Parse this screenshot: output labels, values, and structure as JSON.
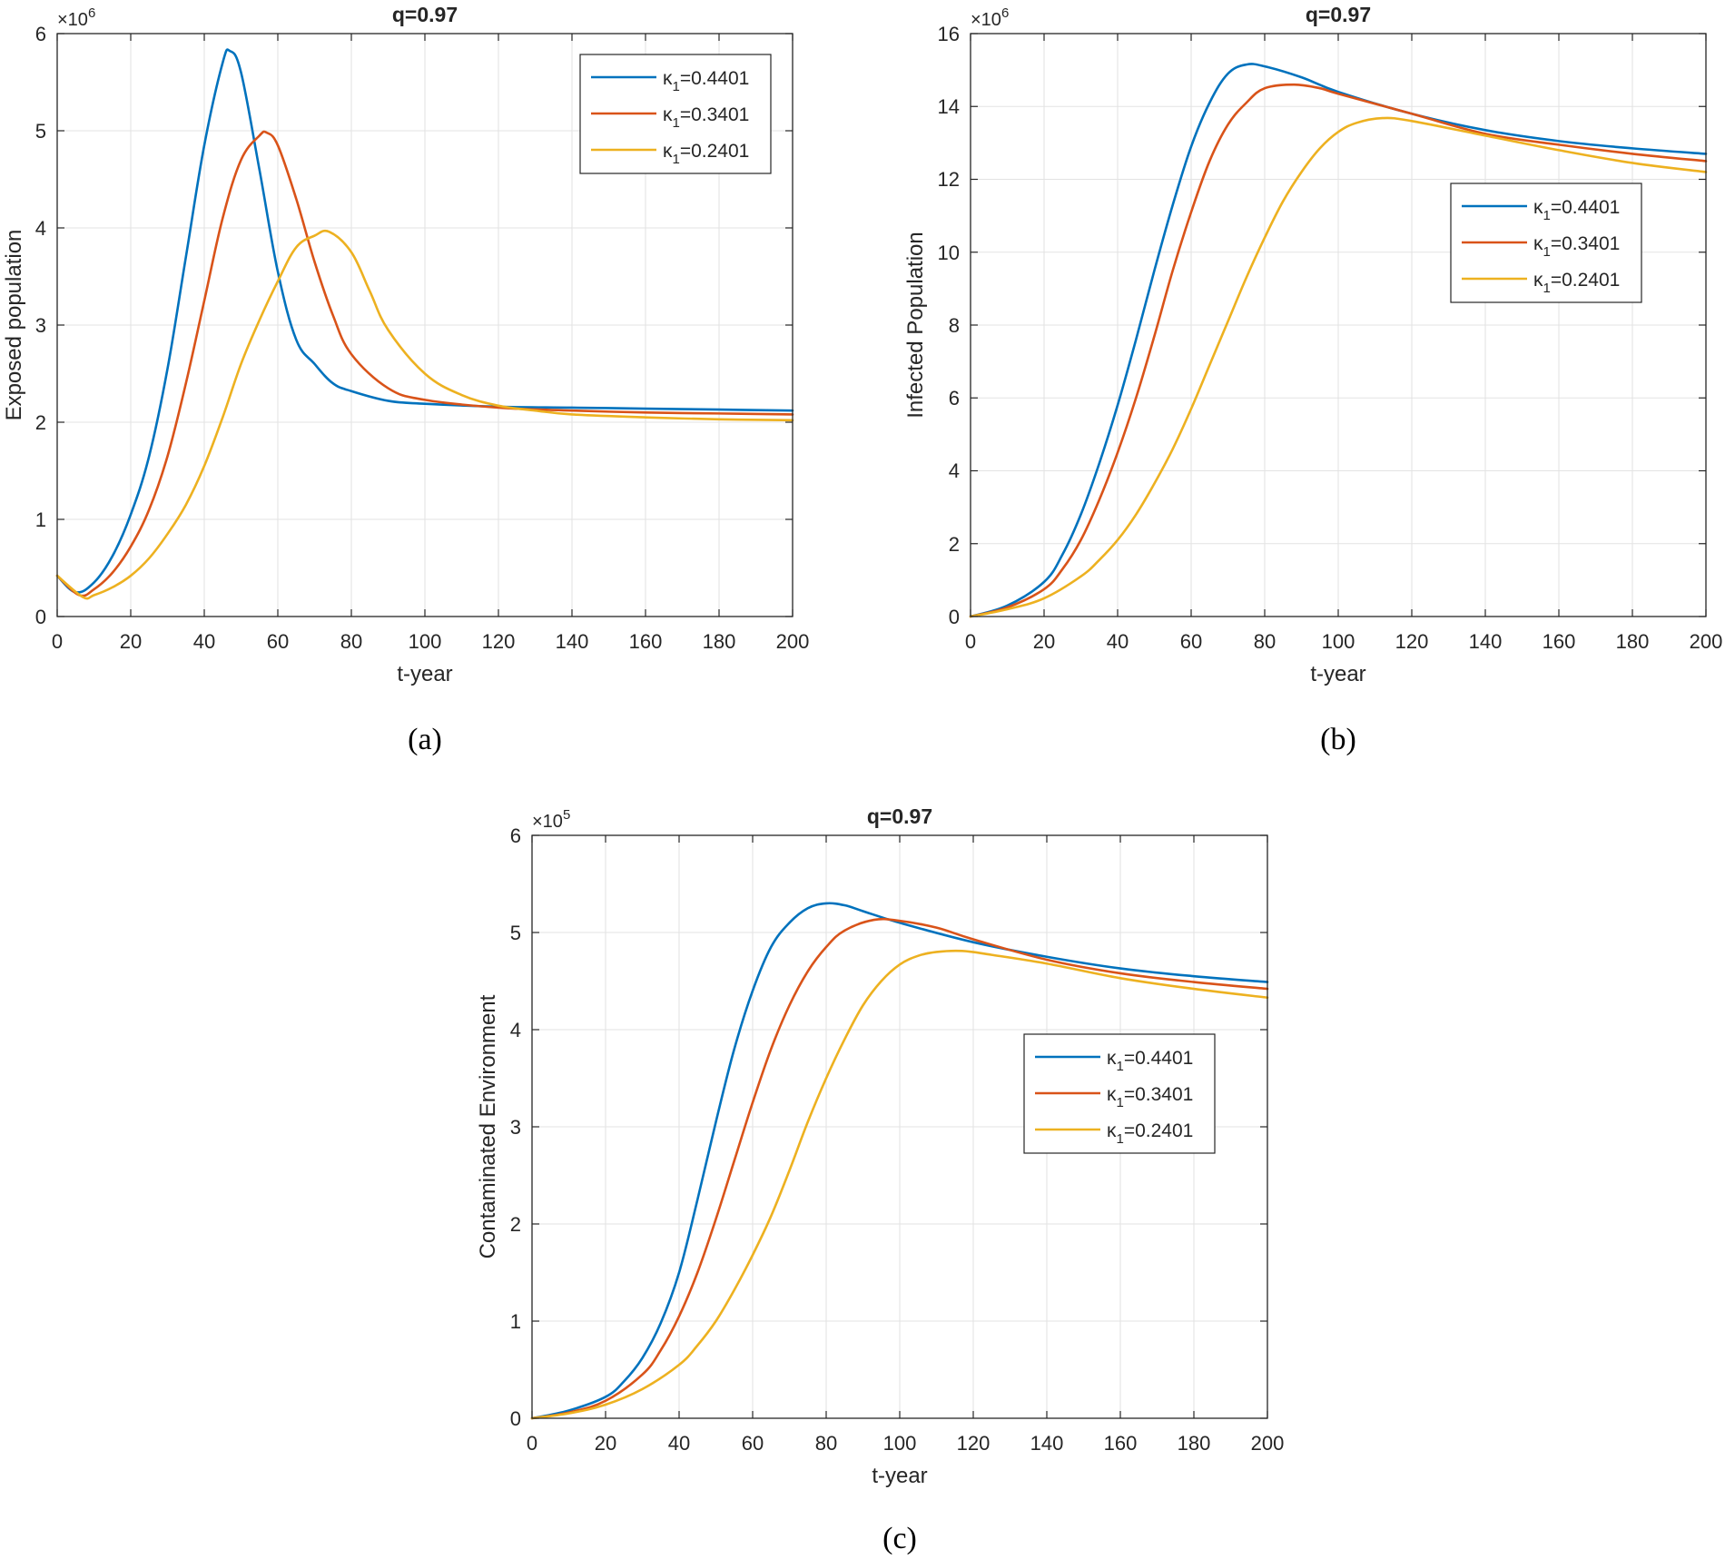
{
  "chart_data": [
    {
      "type": "line",
      "panel_label": "(a)",
      "title": "q=0.97",
      "xlabel": "t-year",
      "ylabel": "Exposed population",
      "y_multiplier": "×10",
      "y_exponent": "6",
      "xlim": [
        0,
        200
      ],
      "ylim": [
        0,
        6
      ],
      "xticks": [
        "0",
        "20",
        "40",
        "60",
        "80",
        "100",
        "120",
        "140",
        "160",
        "180",
        "200"
      ],
      "yticks": [
        "0",
        "1",
        "2",
        "3",
        "4",
        "5",
        "6"
      ],
      "grid": true,
      "legend_position": "top-right",
      "series": [
        {
          "name": "κ",
          "subscript": "1",
          "value_label": "=0.4401",
          "color": "#0072BD",
          "x": [
            0,
            5,
            10,
            15,
            20,
            25,
            30,
            35,
            40,
            45,
            47,
            50,
            55,
            60,
            65,
            70,
            75,
            80,
            90,
            100,
            120,
            140,
            160,
            180,
            200
          ],
          "y": [
            0.42,
            0.25,
            0.35,
            0.62,
            1.05,
            1.65,
            2.55,
            3.7,
            4.85,
            5.7,
            5.82,
            5.6,
            4.6,
            3.55,
            2.85,
            2.6,
            2.4,
            2.32,
            2.22,
            2.19,
            2.16,
            2.15,
            2.14,
            2.13,
            2.12
          ]
        },
        {
          "name": "κ",
          "subscript": "1",
          "value_label": "=0.3401",
          "color": "#D95319",
          "x": [
            0,
            6,
            10,
            15,
            20,
            25,
            30,
            35,
            40,
            45,
            50,
            55,
            57,
            60,
            65,
            70,
            75,
            80,
            90,
            100,
            120,
            140,
            160,
            180,
            200
          ],
          "y": [
            0.42,
            0.22,
            0.28,
            0.45,
            0.72,
            1.1,
            1.65,
            2.4,
            3.25,
            4.1,
            4.7,
            4.95,
            4.98,
            4.85,
            4.3,
            3.65,
            3.1,
            2.7,
            2.35,
            2.23,
            2.15,
            2.12,
            2.1,
            2.09,
            2.08
          ]
        },
        {
          "name": "κ",
          "subscript": "1",
          "value_label": "=0.2401",
          "color": "#EDB120",
          "x": [
            0,
            7,
            10,
            15,
            20,
            25,
            30,
            35,
            40,
            45,
            50,
            55,
            60,
            65,
            70,
            74,
            80,
            85,
            90,
            100,
            110,
            120,
            130,
            140,
            160,
            180,
            200
          ],
          "y": [
            0.42,
            0.2,
            0.22,
            0.3,
            0.42,
            0.6,
            0.85,
            1.15,
            1.55,
            2.05,
            2.6,
            3.05,
            3.45,
            3.8,
            3.92,
            3.96,
            3.75,
            3.35,
            2.95,
            2.5,
            2.28,
            2.17,
            2.12,
            2.08,
            2.05,
            2.03,
            2.02
          ]
        }
      ]
    },
    {
      "type": "line",
      "panel_label": "(b)",
      "title": "q=0.97",
      "xlabel": "t-year",
      "ylabel": "Infected Population",
      "y_multiplier": "×10",
      "y_exponent": "6",
      "xlim": [
        0,
        200
      ],
      "ylim": [
        0,
        16
      ],
      "xticks": [
        "0",
        "20",
        "40",
        "60",
        "80",
        "100",
        "120",
        "140",
        "160",
        "180",
        "200"
      ],
      "yticks": [
        "0",
        "2",
        "4",
        "6",
        "8",
        "10",
        "12",
        "14",
        "16"
      ],
      "grid": true,
      "legend_position": "right",
      "series": [
        {
          "name": "κ",
          "subscript": "1",
          "value_label": "=0.4401",
          "color": "#0072BD",
          "x": [
            0,
            10,
            20,
            25,
            30,
            35,
            40,
            45,
            50,
            55,
            60,
            65,
            70,
            75,
            80,
            90,
            100,
            120,
            140,
            160,
            180,
            200
          ],
          "y": [
            0,
            0.3,
            0.95,
            1.7,
            2.8,
            4.2,
            5.8,
            7.6,
            9.5,
            11.3,
            12.9,
            14.1,
            14.9,
            15.15,
            15.1,
            14.8,
            14.4,
            13.8,
            13.35,
            13.05,
            12.85,
            12.7
          ]
        },
        {
          "name": "κ",
          "subscript": "1",
          "value_label": "=0.3401",
          "color": "#D95319",
          "x": [
            0,
            10,
            20,
            25,
            30,
            35,
            40,
            45,
            50,
            55,
            60,
            65,
            70,
            75,
            80,
            88,
            95,
            100,
            120,
            140,
            160,
            180,
            200
          ],
          "y": [
            0,
            0.25,
            0.75,
            1.3,
            2.1,
            3.2,
            4.5,
            6.0,
            7.7,
            9.5,
            11.1,
            12.5,
            13.5,
            14.1,
            14.5,
            14.6,
            14.5,
            14.35,
            13.8,
            13.25,
            12.95,
            12.7,
            12.5
          ]
        },
        {
          "name": "κ",
          "subscript": "1",
          "value_label": "=0.2401",
          "color": "#EDB120",
          "x": [
            0,
            10,
            20,
            30,
            35,
            40,
            45,
            50,
            55,
            60,
            65,
            70,
            75,
            80,
            85,
            90,
            95,
            100,
            105,
            112,
            120,
            140,
            160,
            180,
            200
          ],
          "y": [
            0,
            0.2,
            0.5,
            1.1,
            1.55,
            2.1,
            2.8,
            3.65,
            4.6,
            5.7,
            6.9,
            8.1,
            9.3,
            10.4,
            11.4,
            12.2,
            12.85,
            13.3,
            13.55,
            13.68,
            13.6,
            13.2,
            12.8,
            12.45,
            12.2
          ]
        }
      ]
    },
    {
      "type": "line",
      "panel_label": "(c)",
      "title": "q=0.97",
      "xlabel": "t-year",
      "ylabel": "Contaminated Environment",
      "y_multiplier": "×10",
      "y_exponent": "5",
      "xlim": [
        0,
        200
      ],
      "ylim": [
        0,
        6
      ],
      "xticks": [
        "0",
        "20",
        "40",
        "60",
        "80",
        "100",
        "120",
        "140",
        "160",
        "180",
        "200"
      ],
      "yticks": [
        "0",
        "1",
        "2",
        "3",
        "4",
        "5",
        "6"
      ],
      "grid": true,
      "legend_position": "right",
      "series": [
        {
          "name": "κ",
          "subscript": "1",
          "value_label": "=0.4401",
          "color": "#0072BD",
          "x": [
            0,
            10,
            20,
            25,
            30,
            35,
            40,
            45,
            50,
            55,
            60,
            65,
            70,
            75,
            80,
            85,
            90,
            100,
            120,
            140,
            160,
            180,
            200
          ],
          "y": [
            0,
            0.08,
            0.22,
            0.38,
            0.62,
            0.98,
            1.5,
            2.25,
            3.05,
            3.8,
            4.4,
            4.85,
            5.1,
            5.25,
            5.3,
            5.28,
            5.22,
            5.1,
            4.9,
            4.75,
            4.63,
            4.55,
            4.49
          ]
        },
        {
          "name": "κ",
          "subscript": "1",
          "value_label": "=0.3401",
          "color": "#D95319",
          "x": [
            0,
            10,
            20,
            30,
            35,
            40,
            45,
            50,
            55,
            60,
            65,
            70,
            75,
            80,
            85,
            93,
            100,
            110,
            120,
            140,
            160,
            180,
            200
          ],
          "y": [
            0,
            0.06,
            0.18,
            0.45,
            0.7,
            1.05,
            1.5,
            2.05,
            2.65,
            3.25,
            3.8,
            4.25,
            4.6,
            4.85,
            5.02,
            5.13,
            5.12,
            5.05,
            4.93,
            4.72,
            4.58,
            4.49,
            4.42
          ]
        },
        {
          "name": "κ",
          "subscript": "1",
          "value_label": "=0.2401",
          "color": "#EDB120",
          "x": [
            0,
            10,
            20,
            30,
            40,
            45,
            50,
            55,
            60,
            65,
            70,
            75,
            80,
            85,
            90,
            95,
            100,
            105,
            110,
            117,
            125,
            140,
            160,
            180,
            200
          ],
          "y": [
            0,
            0.05,
            0.14,
            0.3,
            0.55,
            0.75,
            1.0,
            1.32,
            1.68,
            2.08,
            2.55,
            3.05,
            3.5,
            3.9,
            4.25,
            4.5,
            4.67,
            4.76,
            4.8,
            4.81,
            4.77,
            4.68,
            4.53,
            4.42,
            4.33
          ]
        }
      ]
    }
  ]
}
